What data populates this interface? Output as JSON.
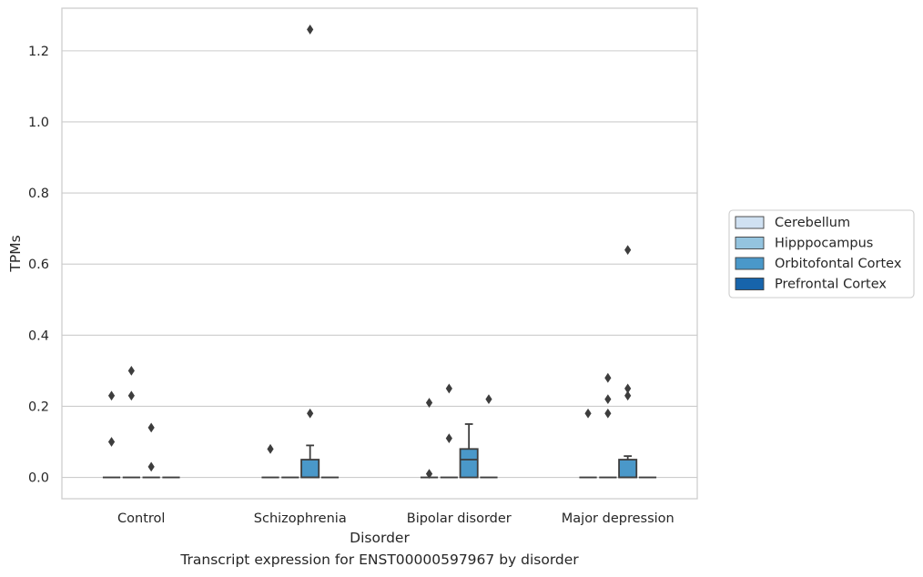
{
  "chart_data": {
    "type": "box",
    "xlabel": "Disorder",
    "ylabel": "TPMs",
    "caption": "Transcript expression for ENST00000597967 by disorder",
    "categories": [
      "Control",
      "Schizophrenia",
      "Bipolar disorder",
      "Major depression"
    ],
    "ylim": [
      -0.06,
      1.32
    ],
    "yticks": [
      0.0,
      0.2,
      0.4,
      0.6,
      0.8,
      1.0,
      1.2
    ],
    "ytick_labels": [
      "0.0",
      "0.2",
      "0.4",
      "0.6",
      "0.8",
      "1.0",
      "1.2"
    ],
    "grid": "horizontal",
    "legend": {
      "placement": "right-center",
      "entries": [
        "Cerebellum",
        "Hipppocampus",
        "Orbitofontal Cortex",
        "Prefrontal Cortex"
      ]
    },
    "colors": {
      "Cerebellum": "#d0e1f2",
      "Hipppocampus": "#94c4df",
      "Orbitofontal Cortex": "#4a98c9",
      "Prefrontal Cortex": "#1764ab"
    },
    "series": [
      {
        "name": "Cerebellum",
        "boxes": [
          {
            "category": "Control",
            "q1": 0,
            "median": 0,
            "q3": 0,
            "whisker_low": 0,
            "whisker_high": 0,
            "outliers": [
              0.1,
              0.23
            ]
          },
          {
            "category": "Schizophrenia",
            "q1": 0,
            "median": 0,
            "q3": 0,
            "whisker_low": 0,
            "whisker_high": 0,
            "outliers": [
              0.08
            ]
          },
          {
            "category": "Bipolar disorder",
            "q1": 0,
            "median": 0,
            "q3": 0,
            "whisker_low": 0,
            "whisker_high": 0,
            "outliers": [
              0.01,
              0.21
            ]
          },
          {
            "category": "Major depression",
            "q1": 0,
            "median": 0,
            "q3": 0,
            "whisker_low": 0,
            "whisker_high": 0,
            "outliers": [
              0.18
            ]
          }
        ]
      },
      {
        "name": "Hipppocampus",
        "boxes": [
          {
            "category": "Control",
            "q1": 0,
            "median": 0,
            "q3": 0,
            "whisker_low": 0,
            "whisker_high": 0,
            "outliers": [
              0.23,
              0.3
            ]
          },
          {
            "category": "Schizophrenia",
            "q1": 0,
            "median": 0,
            "q3": 0,
            "whisker_low": 0,
            "whisker_high": 0,
            "outliers": []
          },
          {
            "category": "Bipolar disorder",
            "q1": 0,
            "median": 0,
            "q3": 0,
            "whisker_low": 0,
            "whisker_high": 0,
            "outliers": [
              0.11,
              0.25
            ]
          },
          {
            "category": "Major depression",
            "q1": 0,
            "median": 0,
            "q3": 0,
            "whisker_low": 0,
            "whisker_high": 0,
            "outliers": [
              0.18,
              0.22,
              0.28
            ]
          }
        ]
      },
      {
        "name": "Orbitofontal Cortex",
        "boxes": [
          {
            "category": "Control",
            "q1": 0,
            "median": 0,
            "q3": 0,
            "whisker_low": 0,
            "whisker_high": 0,
            "outliers": [
              0.03,
              0.14
            ]
          },
          {
            "category": "Schizophrenia",
            "q1": 0,
            "median": 0,
            "q3": 0.05,
            "whisker_low": 0,
            "whisker_high": 0.09,
            "outliers": [
              0.18,
              1.26
            ]
          },
          {
            "category": "Bipolar disorder",
            "q1": 0,
            "median": 0.05,
            "q3": 0.08,
            "whisker_low": 0,
            "whisker_high": 0.15,
            "outliers": []
          },
          {
            "category": "Major depression",
            "q1": 0,
            "median": 0,
            "q3": 0.05,
            "whisker_low": 0,
            "whisker_high": 0.06,
            "outliers": [
              0.23,
              0.25,
              0.64
            ]
          }
        ]
      },
      {
        "name": "Prefrontal Cortex",
        "boxes": [
          {
            "category": "Control",
            "q1": 0,
            "median": 0,
            "q3": 0,
            "whisker_low": 0,
            "whisker_high": 0,
            "outliers": []
          },
          {
            "category": "Schizophrenia",
            "q1": 0,
            "median": 0,
            "q3": 0,
            "whisker_low": 0,
            "whisker_high": 0,
            "outliers": []
          },
          {
            "category": "Bipolar disorder",
            "q1": 0,
            "median": 0,
            "q3": 0,
            "whisker_low": 0,
            "whisker_high": 0,
            "outliers": [
              0.22
            ]
          },
          {
            "category": "Major depression",
            "q1": 0,
            "median": 0,
            "q3": 0,
            "whisker_low": 0,
            "whisker_high": 0,
            "outliers": []
          }
        ]
      }
    ]
  }
}
